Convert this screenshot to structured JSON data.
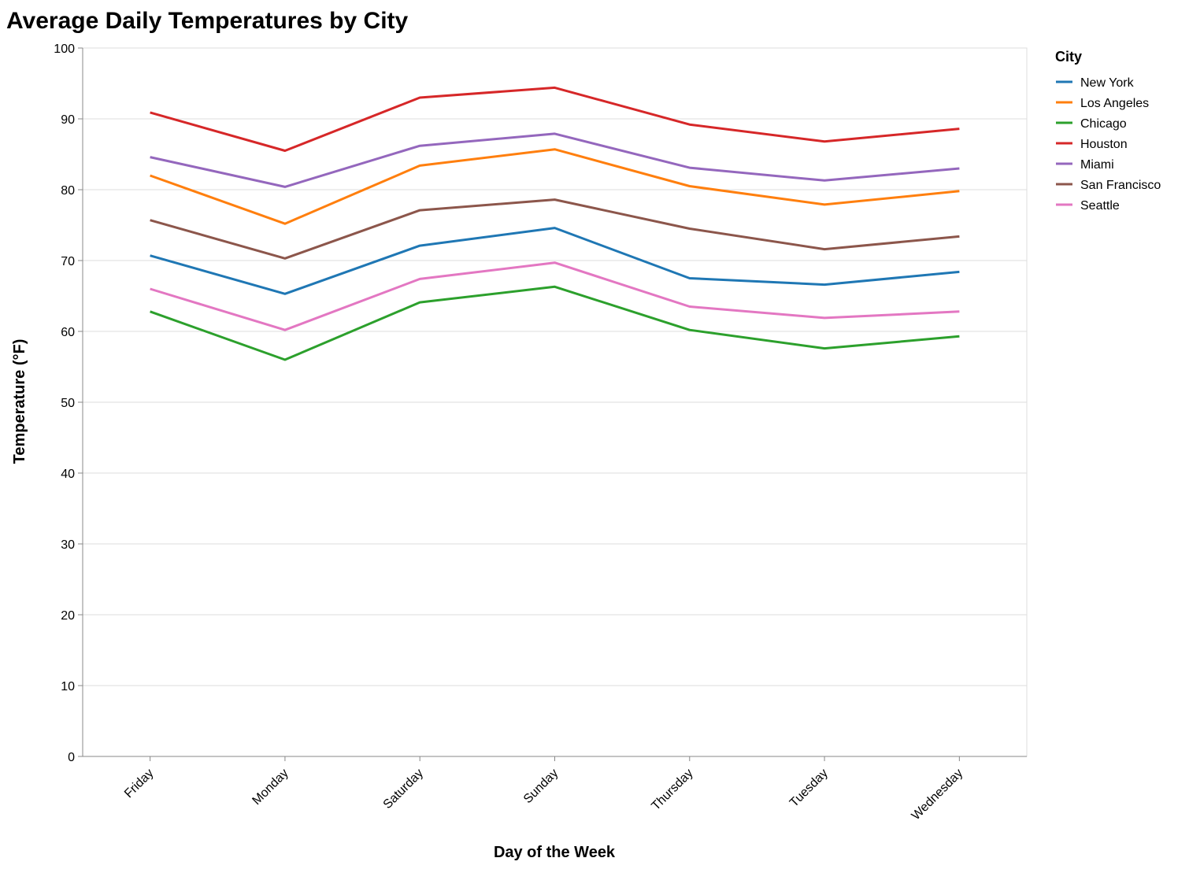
{
  "chart_data": {
    "type": "line",
    "title": "Average Daily Temperatures by City",
    "xlabel": "Day of the Week",
    "ylabel": "Temperature (°F)",
    "ylim": [
      0,
      100
    ],
    "yticks": [
      0,
      10,
      20,
      30,
      40,
      50,
      60,
      70,
      80,
      90,
      100
    ],
    "grid": true,
    "legend_position": "right",
    "legend_title": "City",
    "categories": [
      "Friday",
      "Monday",
      "Saturday",
      "Sunday",
      "Thursday",
      "Tuesday",
      "Wednesday"
    ],
    "series": [
      {
        "name": "New York",
        "color": "#1f77b4",
        "values": [
          70.7,
          65.3,
          72.1,
          74.6,
          67.5,
          66.6,
          68.4
        ]
      },
      {
        "name": "Los Angeles",
        "color": "#ff7f0e",
        "values": [
          82.0,
          75.2,
          83.4,
          85.7,
          80.5,
          77.9,
          79.8
        ]
      },
      {
        "name": "Chicago",
        "color": "#2ca02c",
        "values": [
          62.8,
          56.0,
          64.1,
          66.3,
          60.2,
          57.6,
          59.3
        ]
      },
      {
        "name": "Houston",
        "color": "#d62728",
        "values": [
          90.9,
          85.5,
          93.0,
          94.4,
          89.2,
          86.8,
          88.6
        ]
      },
      {
        "name": "Miami",
        "color": "#9467bd",
        "values": [
          84.6,
          80.4,
          86.2,
          87.9,
          83.1,
          81.3,
          83.0
        ]
      },
      {
        "name": "San Francisco",
        "color": "#8c564b",
        "values": [
          75.7,
          70.3,
          77.1,
          78.6,
          74.5,
          71.6,
          73.4
        ]
      },
      {
        "name": "Seattle",
        "color": "#e377c2",
        "values": [
          66.0,
          60.2,
          67.4,
          69.7,
          63.5,
          61.9,
          62.8
        ]
      }
    ]
  }
}
